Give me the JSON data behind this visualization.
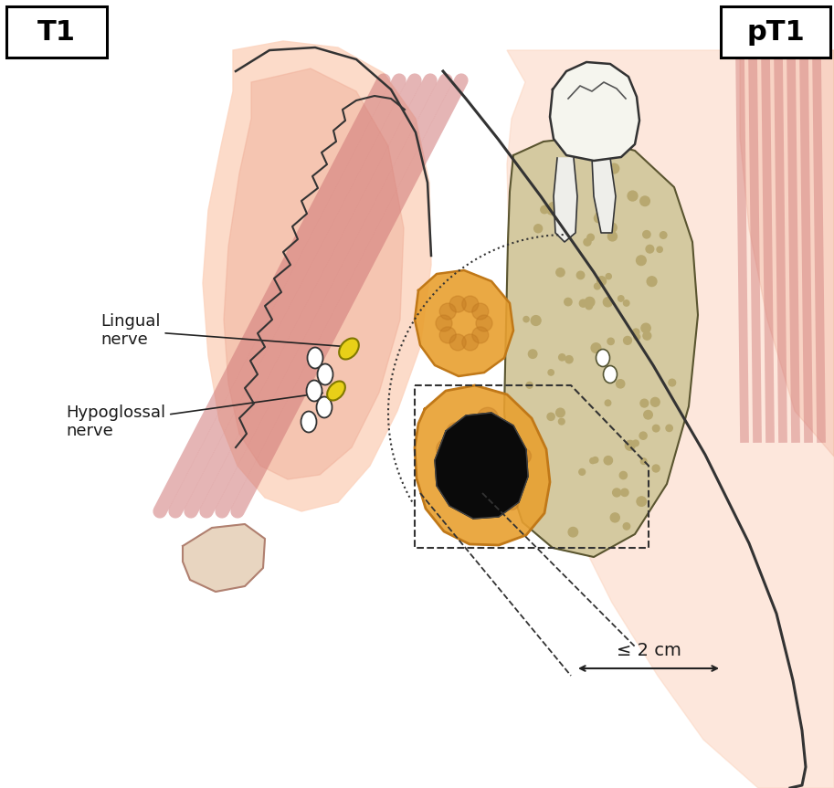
{
  "title_left": "T1",
  "title_right": "pT1",
  "label_lingual": "Lingual\nnerve",
  "label_hypoglossal": "Hypoglossal\nnerve",
  "label_measurement": "≤ 2 cm",
  "bg_color": "#ffffff",
  "flesh_light": "#fcd5c0",
  "flesh_mid": "#f0b09a",
  "flesh_dark": "#d88070",
  "muscle_color": "#d07878",
  "bone_fill": "#d4c9a0",
  "bone_dot": "#b8a870",
  "tumor_orange_fill": "#e8a030",
  "tumor_orange_stroke": "#c07818",
  "tumor_black": "#0a0a0a",
  "nerve_yellow": "#e8d018",
  "nerve_stroke": "#807800",
  "label_color": "#1a1a1a",
  "line_color": "#2a2a2a",
  "tooth_fill": "#f5f5ee",
  "chin_fill": "#e8d5c0"
}
